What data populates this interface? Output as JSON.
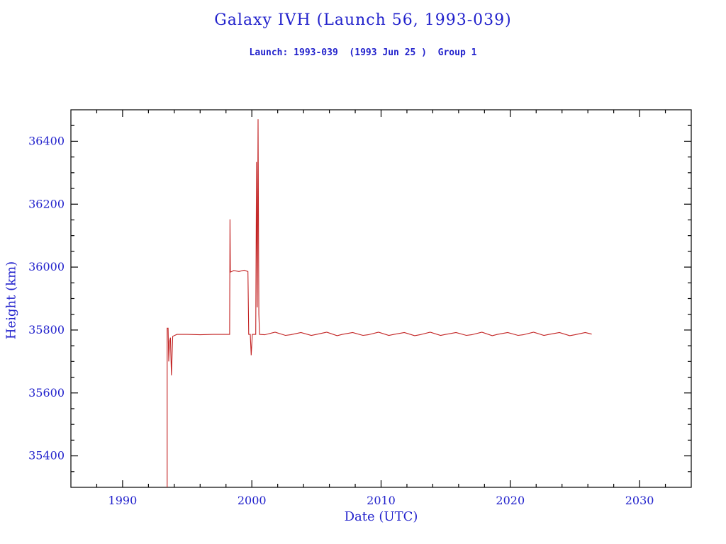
{
  "page": {
    "title": "Galaxy IVH (Launch 56, 1993-039)",
    "subtitle": "Launch: 1993-039  (1993 Jun 25 )  Group 1"
  },
  "colors": {
    "text_blue": "#2222cc",
    "line_red": "#c22222",
    "axis_black": "#000000",
    "background": "#ffffff"
  },
  "chart_data": {
    "type": "line",
    "title": "Galaxy IVH (Launch 56, 1993-039)",
    "subtitle": "Launch: 1993-039  (1993 Jun 25 )  Group 1",
    "xlabel": "Date (UTC)",
    "ylabel": "Height (km)",
    "xlim": [
      1986,
      2034
    ],
    "ylim": [
      35300,
      36500
    ],
    "x_ticks": [
      1990,
      2000,
      2010,
      2020,
      2030
    ],
    "y_ticks": [
      35400,
      35600,
      35800,
      36000,
      36200,
      36400
    ],
    "x_minor_step": 2,
    "y_minor_step": 50,
    "grid": false,
    "legend": "none",
    "series": [
      {
        "name": "height",
        "color": "#c22222",
        "points": [
          [
            1993.45,
            35300
          ],
          [
            1993.45,
            35806
          ],
          [
            1993.52,
            35806
          ],
          [
            1993.57,
            35700
          ],
          [
            1993.63,
            35762
          ],
          [
            1993.7,
            35776
          ],
          [
            1993.78,
            35656
          ],
          [
            1993.88,
            35780
          ],
          [
            1994.2,
            35786
          ],
          [
            1995.0,
            35786
          ],
          [
            1996.0,
            35785
          ],
          [
            1997.0,
            35786
          ],
          [
            1998.0,
            35786
          ],
          [
            1998.28,
            35786
          ],
          [
            1998.31,
            36152
          ],
          [
            1998.34,
            35984
          ],
          [
            1998.6,
            35989
          ],
          [
            1999.0,
            35986
          ],
          [
            1999.4,
            35990
          ],
          [
            1999.7,
            35986
          ],
          [
            1999.76,
            35786
          ],
          [
            1999.88,
            35786
          ],
          [
            1999.95,
            35720
          ],
          [
            2000.04,
            35786
          ],
          [
            2000.3,
            35786
          ],
          [
            2000.36,
            36334
          ],
          [
            2000.42,
            35872
          ],
          [
            2000.48,
            36470
          ],
          [
            2000.54,
            35850
          ],
          [
            2000.6,
            35786
          ],
          [
            2001.0,
            35785
          ],
          [
            2001.8,
            35793
          ],
          [
            2002.6,
            35783
          ],
          [
            2003.0,
            35785
          ],
          [
            2003.8,
            35792
          ],
          [
            2004.6,
            35783
          ],
          [
            2005.0,
            35786
          ],
          [
            2005.8,
            35793
          ],
          [
            2006.6,
            35782
          ],
          [
            2007.0,
            35786
          ],
          [
            2007.8,
            35792
          ],
          [
            2008.6,
            35783
          ],
          [
            2009.0,
            35785
          ],
          [
            2009.8,
            35793
          ],
          [
            2010.6,
            35783
          ],
          [
            2011.0,
            35786
          ],
          [
            2011.8,
            35792
          ],
          [
            2012.6,
            35782
          ],
          [
            2013.0,
            35785
          ],
          [
            2013.8,
            35793
          ],
          [
            2014.6,
            35783
          ],
          [
            2015.0,
            35786
          ],
          [
            2015.8,
            35792
          ],
          [
            2016.6,
            35783
          ],
          [
            2017.0,
            35785
          ],
          [
            2017.8,
            35793
          ],
          [
            2018.6,
            35782
          ],
          [
            2019.0,
            35786
          ],
          [
            2019.8,
            35792
          ],
          [
            2020.6,
            35783
          ],
          [
            2021.0,
            35785
          ],
          [
            2021.8,
            35793
          ],
          [
            2022.6,
            35783
          ],
          [
            2023.0,
            35786
          ],
          [
            2023.8,
            35792
          ],
          [
            2024.6,
            35782
          ],
          [
            2025.0,
            35785
          ],
          [
            2025.8,
            35792
          ],
          [
            2026.3,
            35787
          ]
        ]
      }
    ]
  }
}
